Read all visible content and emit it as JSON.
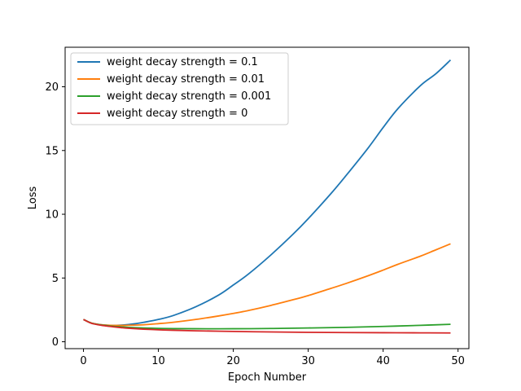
{
  "chart_data": {
    "type": "line",
    "title": "",
    "xlabel": "Epoch Number",
    "ylabel": "Loss",
    "xlim": [
      -2.45,
      51.45
    ],
    "ylim": [
      -0.54,
      23.1
    ],
    "xticks": [
      0,
      10,
      20,
      30,
      40,
      50
    ],
    "yticks": [
      0,
      5,
      10,
      15,
      20
    ],
    "grid": false,
    "legend_position": "top-left",
    "series": [
      {
        "name": "weight decay strength = 0.1",
        "color": "#1f77b4",
        "x": [
          0,
          1,
          2,
          3,
          4,
          5,
          6,
          7,
          8,
          10,
          12,
          15,
          18,
          20,
          22,
          25,
          28,
          30,
          33,
          35,
          38,
          40,
          42,
          45,
          47,
          49
        ],
        "y": [
          1.75,
          1.48,
          1.36,
          1.3,
          1.28,
          1.3,
          1.35,
          1.42,
          1.52,
          1.75,
          2.06,
          2.75,
          3.65,
          4.45,
          5.3,
          6.8,
          8.45,
          9.65,
          11.6,
          13.0,
          15.2,
          16.8,
          18.3,
          20.1,
          21.0,
          22.1
        ]
      },
      {
        "name": "weight decay strength = 0.01",
        "color": "#ff7f0e",
        "x": [
          0,
          1,
          2,
          3,
          4,
          5,
          6,
          8,
          10,
          12,
          15,
          18,
          20,
          22,
          25,
          28,
          30,
          33,
          35,
          38,
          40,
          42,
          45,
          47,
          49
        ],
        "y": [
          1.75,
          1.48,
          1.36,
          1.3,
          1.28,
          1.28,
          1.29,
          1.33,
          1.42,
          1.53,
          1.75,
          2.02,
          2.22,
          2.45,
          2.85,
          3.3,
          3.62,
          4.18,
          4.56,
          5.18,
          5.62,
          6.08,
          6.72,
          7.2,
          7.68
        ]
      },
      {
        "name": "weight decay strength = 0.001",
        "color": "#2ca02c",
        "x": [
          0,
          1,
          2,
          3,
          4,
          5,
          6,
          8,
          10,
          12,
          15,
          20,
          25,
          30,
          35,
          40,
          45,
          49
        ],
        "y": [
          1.75,
          1.47,
          1.35,
          1.27,
          1.21,
          1.17,
          1.13,
          1.08,
          1.05,
          1.03,
          1.02,
          1.02,
          1.04,
          1.08,
          1.13,
          1.2,
          1.29,
          1.37
        ]
      },
      {
        "name": "weight decay strength = 0",
        "color": "#d62728",
        "x": [
          0,
          1,
          2,
          3,
          4,
          5,
          6,
          8,
          10,
          12,
          15,
          20,
          25,
          30,
          35,
          40,
          45,
          49
        ],
        "y": [
          1.75,
          1.46,
          1.33,
          1.24,
          1.17,
          1.11,
          1.06,
          0.99,
          0.94,
          0.9,
          0.86,
          0.81,
          0.77,
          0.74,
          0.72,
          0.71,
          0.7,
          0.69
        ]
      }
    ]
  }
}
